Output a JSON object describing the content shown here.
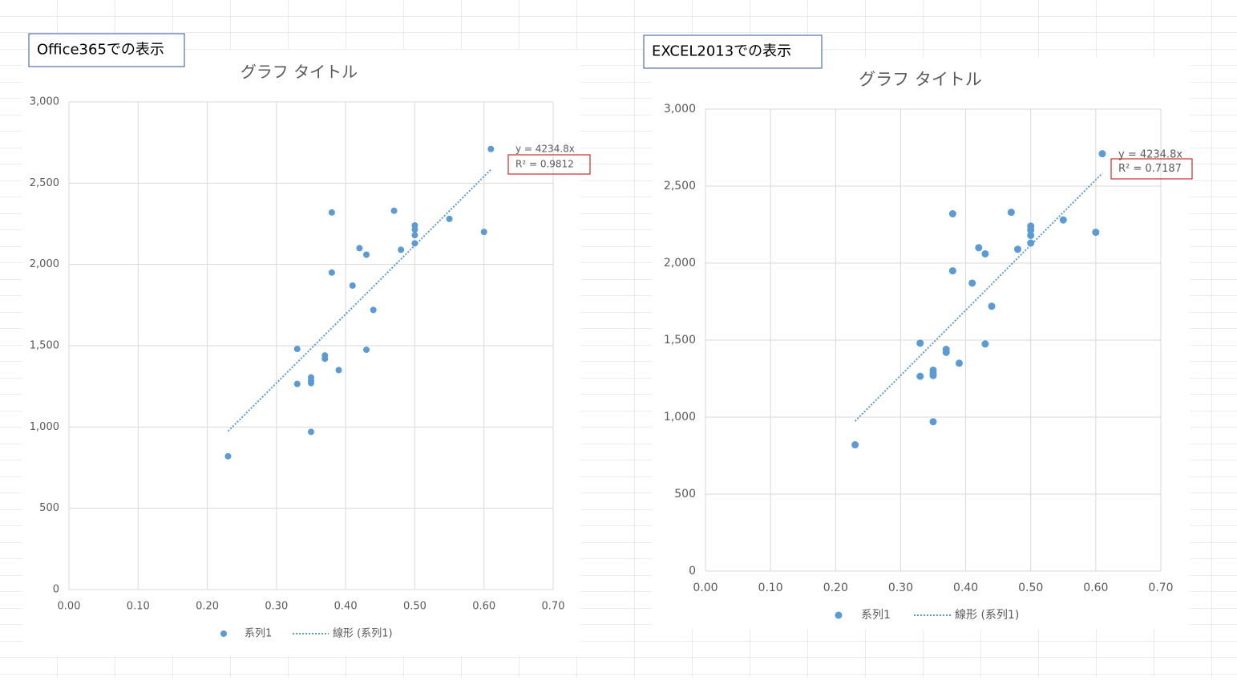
{
  "chart_data": [
    {
      "type": "scatter",
      "label": "Office365での表示",
      "title": "グラフ タイトル",
      "series": [
        {
          "name": "系列1",
          "color": "#5b9bd5",
          "x": [
            0.61,
            0.38,
            0.47,
            0.5,
            0.5,
            0.5,
            0.5,
            0.55,
            0.6,
            0.42,
            0.43,
            0.48,
            0.38,
            0.41,
            0.44,
            0.33,
            0.43,
            0.37,
            0.37,
            0.39,
            0.35,
            0.35,
            0.35,
            0.33,
            0.35,
            0.23
          ],
          "values": [
            2710,
            2320,
            2330,
            2240,
            2215,
            2180,
            2130,
            2280,
            2200,
            2100,
            2060,
            2090,
            1950,
            1870,
            1720,
            1480,
            1475,
            1440,
            1420,
            1350,
            1305,
            1285,
            1270,
            1265,
            970,
            820
          ]
        }
      ],
      "trendline": {
        "name": "線形 (系列1)",
        "slope": 4234.8,
        "label": "y = 4234.8x",
        "r2_label": "R² = 0.9812"
      },
      "xlim": [
        0,
        0.7
      ],
      "xticks": [
        {
          "value": 0,
          "label": "0.00"
        },
        {
          "value": 0.1,
          "label": "0.10"
        },
        {
          "value": 0.2,
          "label": "0.20"
        },
        {
          "value": 0.3,
          "label": "0.30"
        },
        {
          "value": 0.4,
          "label": "0.40"
        },
        {
          "value": 0.5,
          "label": "0.50"
        },
        {
          "value": 0.6,
          "label": "0.60"
        },
        {
          "value": 0.7,
          "label": "0.70"
        }
      ],
      "ylim": [
        0,
        3000
      ],
      "yticks": [
        0,
        500,
        {
          "value": 1000,
          "label": "1,000"
        },
        {
          "value": 1500,
          "label": "1,500"
        },
        {
          "value": 2000,
          "label": "2,000"
        },
        {
          "value": 2500,
          "label": "2,500"
        },
        {
          "value": 3000,
          "label": "3,000"
        }
      ],
      "grid": true
    },
    {
      "type": "scatter",
      "label": "EXCEL2013での表示",
      "title": "グラフ タイトル",
      "series": [
        {
          "name": "系列1",
          "color": "#5b9bd5",
          "x": [
            0.61,
            0.38,
            0.47,
            0.5,
            0.5,
            0.5,
            0.5,
            0.55,
            0.6,
            0.42,
            0.43,
            0.48,
            0.38,
            0.41,
            0.44,
            0.33,
            0.43,
            0.37,
            0.37,
            0.39,
            0.35,
            0.35,
            0.35,
            0.33,
            0.35,
            0.23
          ],
          "values": [
            2710,
            2320,
            2330,
            2240,
            2215,
            2180,
            2130,
            2280,
            2200,
            2100,
            2060,
            2090,
            1950,
            1870,
            1720,
            1480,
            1475,
            1440,
            1420,
            1350,
            1305,
            1285,
            1270,
            1265,
            970,
            820
          ]
        }
      ],
      "trendline": {
        "name": "線形 (系列1)",
        "slope": 4234.8,
        "label": "y = 4234.8x",
        "r2_label": "R² = 0.7187"
      },
      "xlim": [
        0,
        0.7
      ],
      "xticks": [
        {
          "value": 0,
          "label": "0.00"
        },
        {
          "value": 0.1,
          "label": "0.10"
        },
        {
          "value": 0.2,
          "label": "0.20"
        },
        {
          "value": 0.3,
          "label": "0.30"
        },
        {
          "value": 0.4,
          "label": "0.40"
        },
        {
          "value": 0.5,
          "label": "0.50"
        },
        {
          "value": 0.6,
          "label": "0.60"
        },
        {
          "value": 0.7,
          "label": "0.70"
        }
      ],
      "ylim": [
        0,
        3000
      ],
      "yticks": [
        0,
        500,
        {
          "value": 1000,
          "label": "1,000"
        },
        {
          "value": 1500,
          "label": "1,500"
        },
        {
          "value": 2000,
          "label": "2,000"
        },
        {
          "value": 2500,
          "label": "2,500"
        },
        {
          "value": 3000,
          "label": "3,000"
        }
      ],
      "grid": true
    }
  ]
}
